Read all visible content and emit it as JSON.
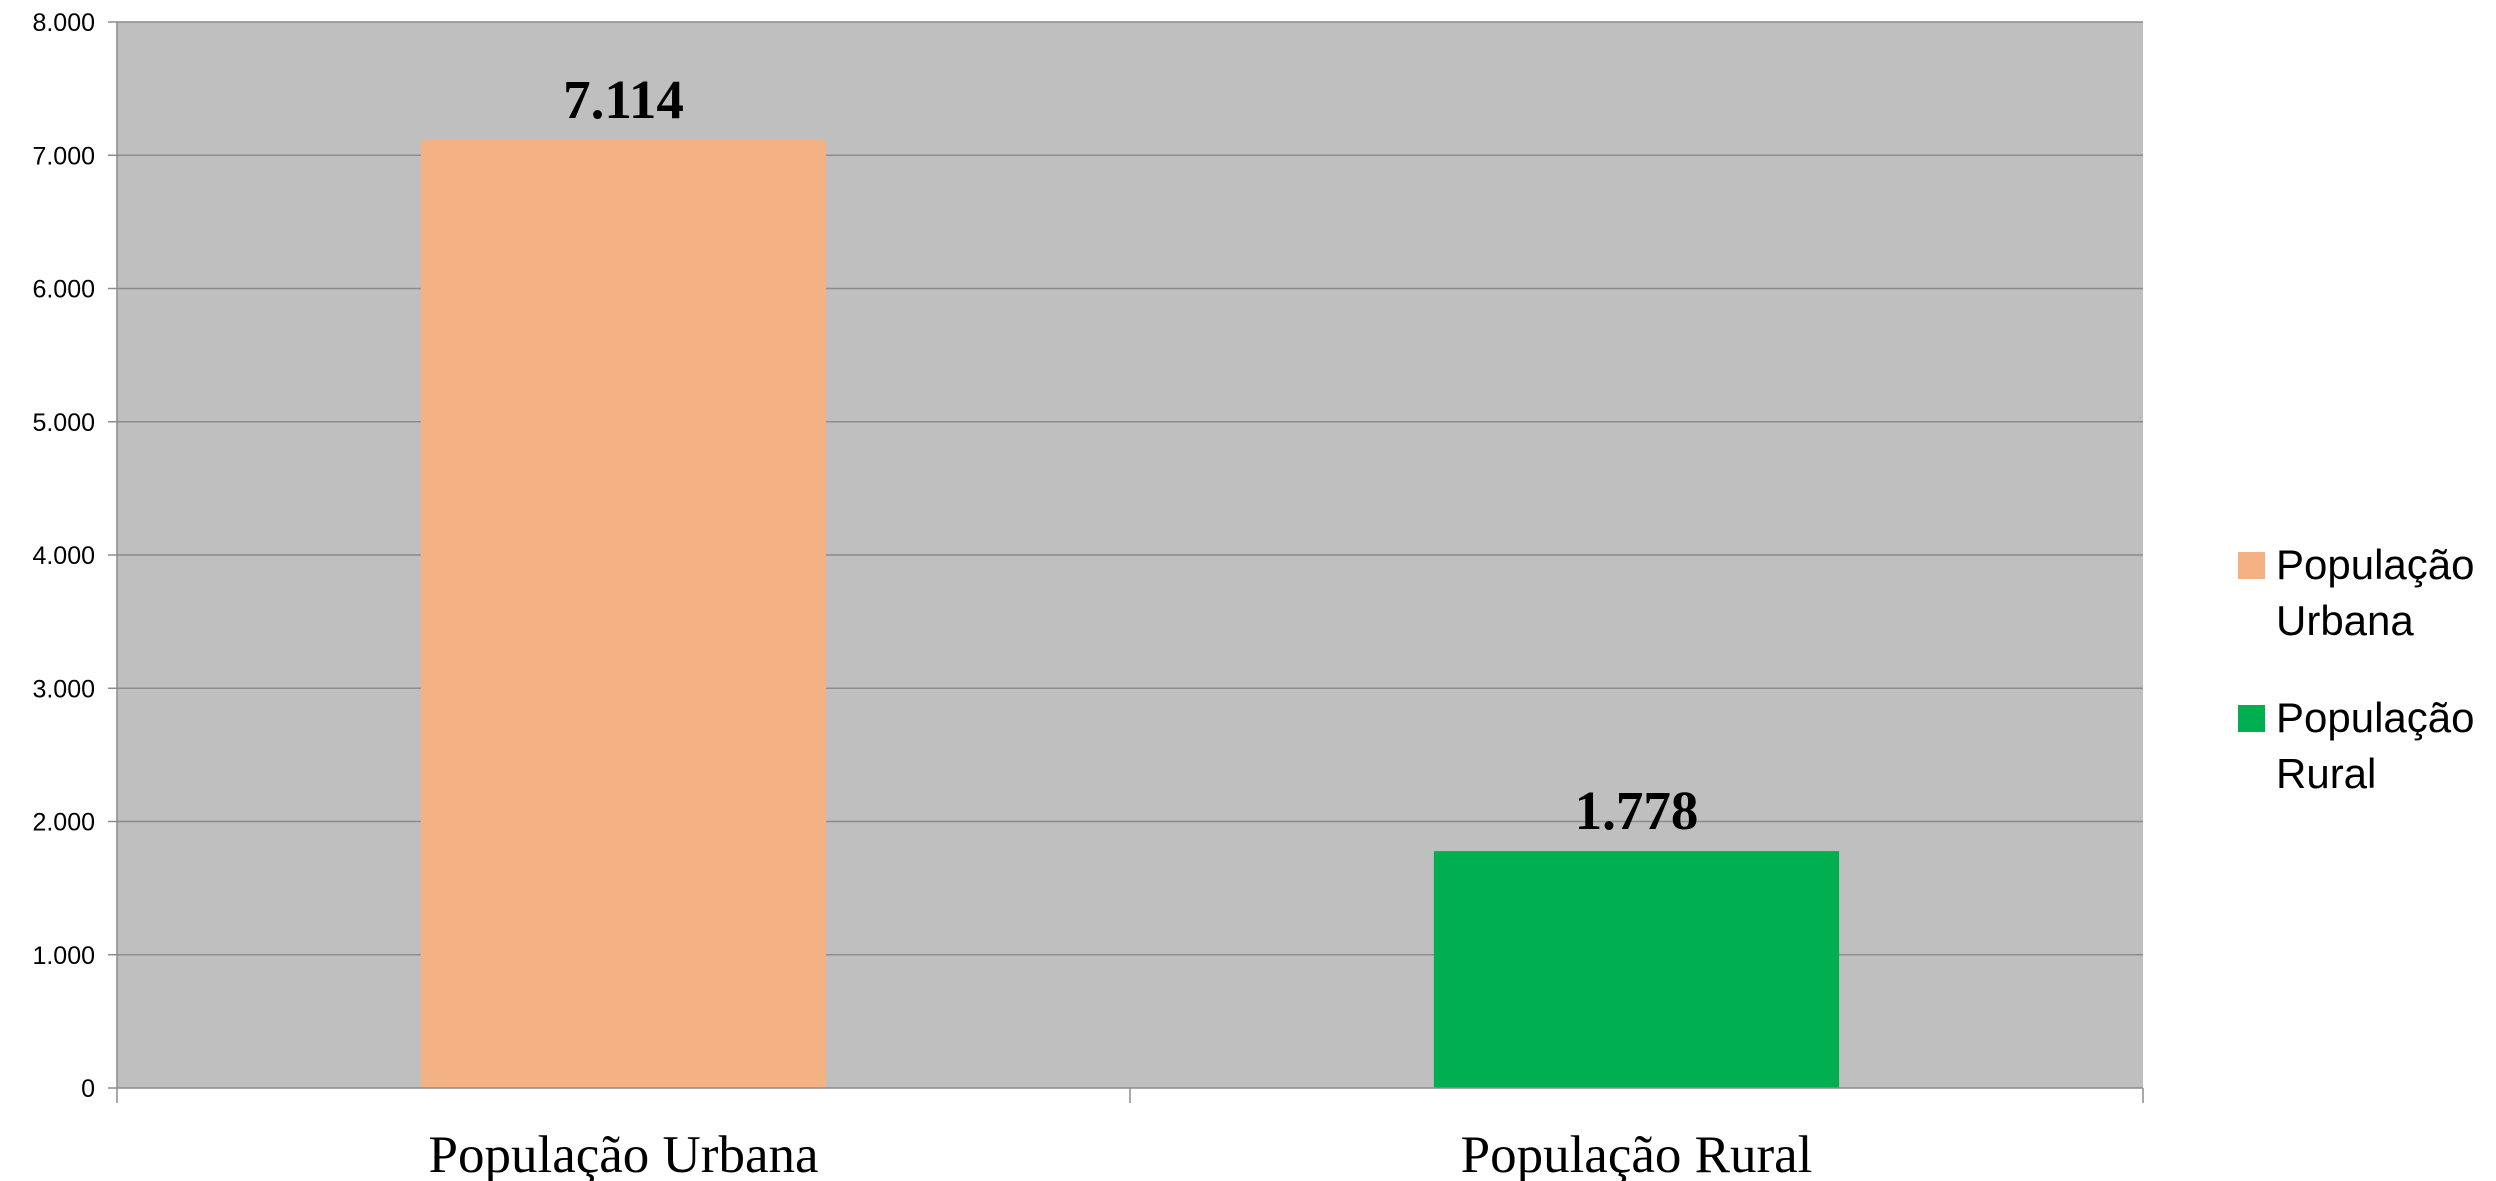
{
  "chart_data": {
    "type": "bar",
    "categories": [
      "População Urbana",
      "População Rural"
    ],
    "values": [
      7114,
      1778
    ],
    "data_labels": [
      "7.114",
      "1.778"
    ],
    "colors": [
      "#F4B183",
      "#00B050"
    ],
    "ylim": [
      0,
      8000
    ],
    "yticks": [
      0,
      1000,
      2000,
      3000,
      4000,
      5000,
      6000,
      7000,
      8000
    ],
    "ytick_labels": [
      "0",
      "1.000",
      "2.000",
      "3.000",
      "4.000",
      "5.000",
      "6.000",
      "7.000",
      "8.000"
    ],
    "title": "",
    "xlabel": "",
    "ylabel": "",
    "grid": true,
    "plot_background": "#BFBFBF",
    "legend": {
      "placement": "right",
      "entries": [
        {
          "lines": [
            "População",
            "Urbana"
          ],
          "color": "#F4B183"
        },
        {
          "lines": [
            "População",
            "Rural"
          ],
          "color": "#00B050"
        }
      ]
    }
  }
}
